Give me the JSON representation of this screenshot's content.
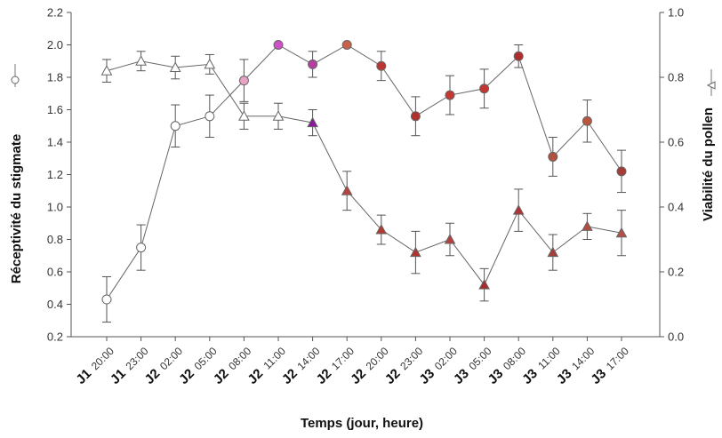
{
  "chart_data": {
    "type": "line",
    "xlabel": "Temps (jour, heure)",
    "ylabel_left": "Réceptivité du stigmate",
    "ylabel_right": "Viabilité du pollen",
    "categories": [
      {
        "day": "J1",
        "hour": "20:00"
      },
      {
        "day": "J1",
        "hour": "23:00"
      },
      {
        "day": "J2",
        "hour": "02:00"
      },
      {
        "day": "J2",
        "hour": "05:00"
      },
      {
        "day": "J2",
        "hour": "08:00"
      },
      {
        "day": "J2",
        "hour": "11:00"
      },
      {
        "day": "J2",
        "hour": "14:00"
      },
      {
        "day": "J2",
        "hour": "17:00"
      },
      {
        "day": "J2",
        "hour": "20:00"
      },
      {
        "day": "J2",
        "hour": "23:00"
      },
      {
        "day": "J3",
        "hour": "02:00"
      },
      {
        "day": "J3",
        "hour": "05:00"
      },
      {
        "day": "J3",
        "hour": "08:00"
      },
      {
        "day": "J3",
        "hour": "11:00"
      },
      {
        "day": "J3",
        "hour": "14:00"
      },
      {
        "day": "J3",
        "hour": "17:00"
      }
    ],
    "y_left": {
      "min": 0.2,
      "max": 2.2,
      "ticks": [
        "0.2",
        "0.4",
        "0.6",
        "0.8",
        "1.0",
        "1.2",
        "1.4",
        "1.6",
        "1.8",
        "2.0",
        "2.2"
      ]
    },
    "y_right": {
      "min": 0.0,
      "max": 1.0,
      "ticks": [
        "0.0",
        "0.2",
        "0.4",
        "0.6",
        "0.8",
        "1.0"
      ]
    },
    "grid": false,
    "series": [
      {
        "axis": "left",
        "marker": "circle",
        "values": [
          0.43,
          0.75,
          1.5,
          1.56,
          1.78,
          2.0,
          1.88,
          2.0,
          1.87,
          1.56,
          1.69,
          1.73,
          1.93,
          1.31,
          1.53,
          1.22
        ],
        "errors": [
          0.14,
          0.14,
          0.13,
          0.13,
          0.13,
          0.0,
          0.08,
          0.0,
          0.09,
          0.12,
          0.12,
          0.12,
          0.07,
          0.12,
          0.13,
          0.13
        ],
        "fill_colors": [
          "#ffffff",
          "#ffffff",
          "#ffffff",
          "#ffffff",
          "#e8a2c6",
          "#cf4fc8",
          "#b43f9f",
          "#c8604a",
          "#bb3630",
          "#b3302d",
          "#c43733",
          "#c23732",
          "#b02c2c",
          "#b4513e",
          "#b9553e",
          "#a63c37"
        ]
      },
      {
        "axis": "right",
        "marker": "triangle",
        "values": [
          0.82,
          0.85,
          0.83,
          0.84,
          0.68,
          0.68,
          0.66,
          0.45,
          0.33,
          0.26,
          0.3,
          0.16,
          0.39,
          0.26,
          0.34,
          0.32
        ],
        "errors": [
          0.035,
          0.03,
          0.035,
          0.03,
          0.04,
          0.04,
          0.04,
          0.06,
          0.045,
          0.065,
          0.05,
          0.05,
          0.065,
          0.055,
          0.04,
          0.07
        ],
        "fill_colors": [
          "#ffffff",
          "#ffffff",
          "#ffffff",
          "#ffffff",
          "#ffffff",
          "#ffffff",
          "#8a1a9a",
          "#b9433c",
          "#b33a30",
          "#b03430",
          "#b54040",
          "#a82c2c",
          "#b03434",
          "#a53d3a",
          "#b14c44",
          "#b35048"
        ]
      }
    ]
  }
}
